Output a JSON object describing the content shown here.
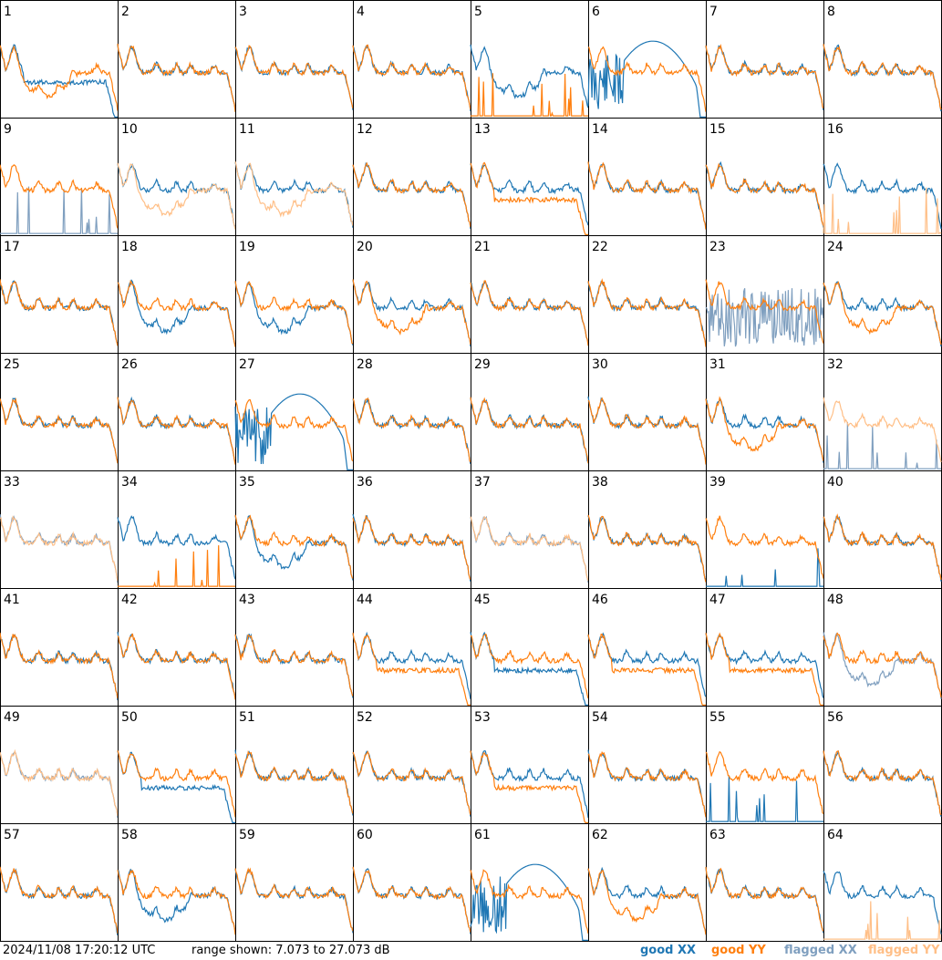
{
  "timestamp": "2024/11/08 17:20:12 UTC",
  "range_text": "range shown: 7.073 to 27.073 dB",
  "legend": {
    "good_xx": "good XX",
    "good_yy": "good YY",
    "flagged_xx": "flagged XX",
    "flagged_yy": "flagged YY"
  },
  "colors": {
    "good_xx": "#1f77b4",
    "good_yy": "#ff7f0e",
    "flagged_xx": "#7f9fbf",
    "flagged_yy": "#ffbf87",
    "grid": "#000000"
  },
  "chart_data": {
    "type": "line",
    "ylim": [
      7.073,
      27.073
    ],
    "grid": true,
    "legend_placement": "bottom-right",
    "panels": [
      {
        "label": "1",
        "xx": "good",
        "yy": "good",
        "xx_pat": "drop",
        "yy_pat": "dip"
      },
      {
        "label": "2",
        "xx": "good",
        "yy": "good"
      },
      {
        "label": "3",
        "xx": "good",
        "yy": "good"
      },
      {
        "label": "4",
        "xx": "good",
        "yy": "good"
      },
      {
        "label": "5",
        "xx": "good",
        "yy": "good",
        "xx_pat": "dip",
        "yy_pat": "low"
      },
      {
        "label": "6",
        "xx": "good",
        "yy": "good",
        "xx_pat": "deep",
        "yy_pat": "normal"
      },
      {
        "label": "7",
        "xx": "good",
        "yy": "good"
      },
      {
        "label": "8",
        "xx": "good",
        "yy": "good"
      },
      {
        "label": "9",
        "xx": "flagged",
        "yy": "good",
        "xx_pat": "low",
        "yy_pat": "normal"
      },
      {
        "label": "10",
        "xx": "good",
        "yy": "flagged",
        "xx_pat": "normal",
        "yy_pat": "dip"
      },
      {
        "label": "11",
        "xx": "good",
        "yy": "flagged",
        "xx_pat": "normal",
        "yy_pat": "dip"
      },
      {
        "label": "12",
        "xx": "good",
        "yy": "good"
      },
      {
        "label": "13",
        "xx": "good",
        "yy": "good",
        "xx_pat": "normal",
        "yy_pat": "drop"
      },
      {
        "label": "14",
        "xx": "good",
        "yy": "good"
      },
      {
        "label": "15",
        "xx": "good",
        "yy": "good"
      },
      {
        "label": "16",
        "xx": "good",
        "yy": "flagged",
        "xx_pat": "normal",
        "yy_pat": "low"
      },
      {
        "label": "17",
        "xx": "good",
        "yy": "good"
      },
      {
        "label": "18",
        "xx": "good",
        "yy": "good",
        "xx_pat": "dip",
        "yy_pat": "normal"
      },
      {
        "label": "19",
        "xx": "good",
        "yy": "good",
        "xx_pat": "dip",
        "yy_pat": "normal"
      },
      {
        "label": "20",
        "xx": "good",
        "yy": "good",
        "xx_pat": "normal",
        "yy_pat": "dip"
      },
      {
        "label": "21",
        "xx": "good",
        "yy": "good"
      },
      {
        "label": "22",
        "xx": "good",
        "yy": "good"
      },
      {
        "label": "23",
        "xx": "flagged",
        "yy": "good",
        "xx_pat": "noise",
        "yy_pat": "normal"
      },
      {
        "label": "24",
        "xx": "good",
        "yy": "good",
        "xx_pat": "normal",
        "yy_pat": "dip"
      },
      {
        "label": "25",
        "xx": "good",
        "yy": "good"
      },
      {
        "label": "26",
        "xx": "good",
        "yy": "good"
      },
      {
        "label": "27",
        "xx": "good",
        "yy": "good",
        "xx_pat": "deep",
        "yy_pat": "normal"
      },
      {
        "label": "28",
        "xx": "good",
        "yy": "good"
      },
      {
        "label": "29",
        "xx": "good",
        "yy": "good"
      },
      {
        "label": "30",
        "xx": "good",
        "yy": "good"
      },
      {
        "label": "31",
        "xx": "good",
        "yy": "good",
        "xx_pat": "normal",
        "yy_pat": "dip"
      },
      {
        "label": "32",
        "xx": "flagged",
        "yy": "flagged",
        "xx_pat": "low",
        "yy_pat": "normal"
      },
      {
        "label": "33",
        "xx": "flagged",
        "yy": "flagged"
      },
      {
        "label": "34",
        "xx": "good",
        "yy": "good",
        "xx_pat": "normal",
        "yy_pat": "low"
      },
      {
        "label": "35",
        "xx": "good",
        "yy": "good",
        "xx_pat": "dip",
        "yy_pat": "normal"
      },
      {
        "label": "36",
        "xx": "good",
        "yy": "good"
      },
      {
        "label": "37",
        "xx": "flagged",
        "yy": "flagged"
      },
      {
        "label": "38",
        "xx": "good",
        "yy": "good"
      },
      {
        "label": "39",
        "xx": "good",
        "yy": "good",
        "xx_pat": "low",
        "yy_pat": "normal"
      },
      {
        "label": "40",
        "xx": "good",
        "yy": "good"
      },
      {
        "label": "41",
        "xx": "good",
        "yy": "good"
      },
      {
        "label": "42",
        "xx": "good",
        "yy": "good"
      },
      {
        "label": "43",
        "xx": "good",
        "yy": "good"
      },
      {
        "label": "44",
        "xx": "good",
        "yy": "good",
        "xx_pat": "normal",
        "yy_pat": "drop"
      },
      {
        "label": "45",
        "xx": "good",
        "yy": "good",
        "xx_pat": "drop",
        "yy_pat": "normal"
      },
      {
        "label": "46",
        "xx": "good",
        "yy": "good",
        "xx_pat": "normal",
        "yy_pat": "drop"
      },
      {
        "label": "47",
        "xx": "good",
        "yy": "good",
        "xx_pat": "normal",
        "yy_pat": "drop"
      },
      {
        "label": "48",
        "xx": "flagged",
        "yy": "good",
        "xx_pat": "dip",
        "yy_pat": "normal"
      },
      {
        "label": "49",
        "xx": "flagged",
        "yy": "flagged"
      },
      {
        "label": "50",
        "xx": "good",
        "yy": "good",
        "xx_pat": "drop",
        "yy_pat": "normal"
      },
      {
        "label": "51",
        "xx": "good",
        "yy": "good"
      },
      {
        "label": "52",
        "xx": "good",
        "yy": "good"
      },
      {
        "label": "53",
        "xx": "good",
        "yy": "good",
        "xx_pat": "normal",
        "yy_pat": "drop"
      },
      {
        "label": "54",
        "xx": "good",
        "yy": "good"
      },
      {
        "label": "55",
        "xx": "good",
        "yy": "good",
        "xx_pat": "low",
        "yy_pat": "normal"
      },
      {
        "label": "56",
        "xx": "good",
        "yy": "good"
      },
      {
        "label": "57",
        "xx": "good",
        "yy": "good"
      },
      {
        "label": "58",
        "xx": "good",
        "yy": "good",
        "xx_pat": "dip",
        "yy_pat": "normal"
      },
      {
        "label": "59",
        "xx": "good",
        "yy": "good"
      },
      {
        "label": "60",
        "xx": "good",
        "yy": "good"
      },
      {
        "label": "61",
        "xx": "good",
        "yy": "good",
        "xx_pat": "deep",
        "yy_pat": "normal"
      },
      {
        "label": "62",
        "xx": "good",
        "yy": "good",
        "xx_pat": "normal",
        "yy_pat": "dip"
      },
      {
        "label": "63",
        "xx": "good",
        "yy": "good"
      },
      {
        "label": "64",
        "xx": "good",
        "yy": "flagged",
        "xx_pat": "normal",
        "yy_pat": "low"
      }
    ]
  }
}
